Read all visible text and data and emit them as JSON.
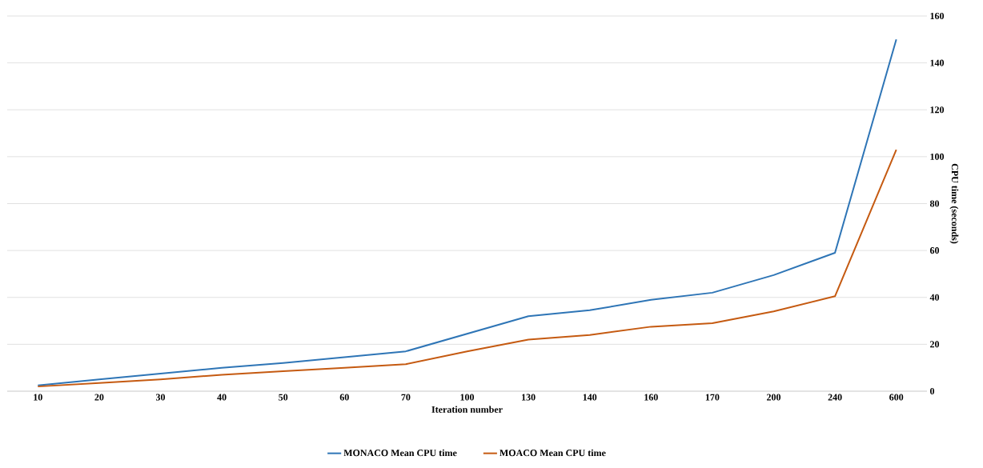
{
  "chart_data": {
    "type": "line",
    "xlabel": "Iteration number",
    "ylabel": "CPU time (seconds)",
    "categories": [
      "10",
      "20",
      "30",
      "40",
      "50",
      "60",
      "70",
      "100",
      "130",
      "140",
      "160",
      "170",
      "200",
      "240",
      "600"
    ],
    "series": [
      {
        "name": "MONACO Mean CPU time",
        "color": "#2e75b6",
        "values": [
          2.5,
          5,
          7.5,
          10,
          12,
          14.5,
          17,
          24.5,
          32,
          34.5,
          39,
          42,
          49.5,
          59,
          150
        ]
      },
      {
        "name": "MOACO Mean CPU time",
        "color": "#c55a11",
        "values": [
          2,
          3.5,
          5,
          7,
          8.5,
          10,
          11.5,
          17,
          22,
          24,
          27.5,
          29,
          34,
          40.5,
          103
        ]
      }
    ],
    "ylim": [
      0,
      160
    ],
    "yticks": [
      0,
      20,
      40,
      60,
      80,
      100,
      120,
      140,
      160
    ],
    "grid": "y",
    "legend": "bottom",
    "marker": "none",
    "line_style": "solid"
  }
}
